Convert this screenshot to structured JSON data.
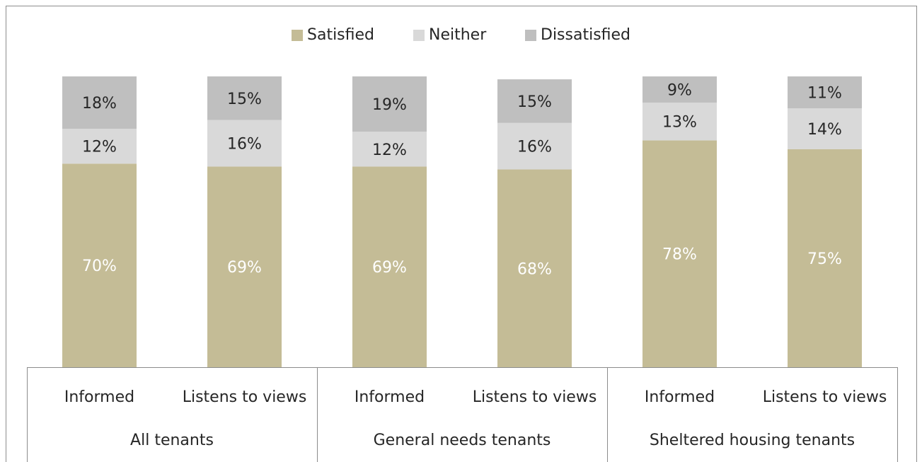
{
  "chart_data": {
    "type": "stacked_bar",
    "categories": [
      "Informed",
      "Listens to views",
      "Informed",
      "Listens to views",
      "Informed",
      "Listens to views"
    ],
    "groups": [
      "All tenants",
      "General needs tenants",
      "Sheltered housing tenants"
    ],
    "ylim": [
      0,
      100
    ],
    "legend": "top",
    "series": [
      {
        "name": "Satisfied",
        "color": "#c4bc96",
        "label_color": "#ffffff",
        "values": [
          70,
          69,
          69,
          68,
          78,
          75
        ],
        "value_labels": [
          "70%",
          "69%",
          "69%",
          "68%",
          "78%",
          "75%"
        ]
      },
      {
        "name": "Neither",
        "color": "#d9d9d9",
        "label_color": "#262626",
        "values": [
          12,
          16,
          12,
          16,
          13,
          14
        ],
        "value_labels": [
          "12%",
          "16%",
          "12%",
          "16%",
          "13%",
          "14%"
        ]
      },
      {
        "name": "Dissatisfied",
        "color": "#bfbfbf",
        "label_color": "#262626",
        "values": [
          18,
          15,
          19,
          15,
          9,
          11
        ],
        "value_labels": [
          "18%",
          "15%",
          "19%",
          "15%",
          "9%",
          "11%"
        ]
      }
    ]
  }
}
